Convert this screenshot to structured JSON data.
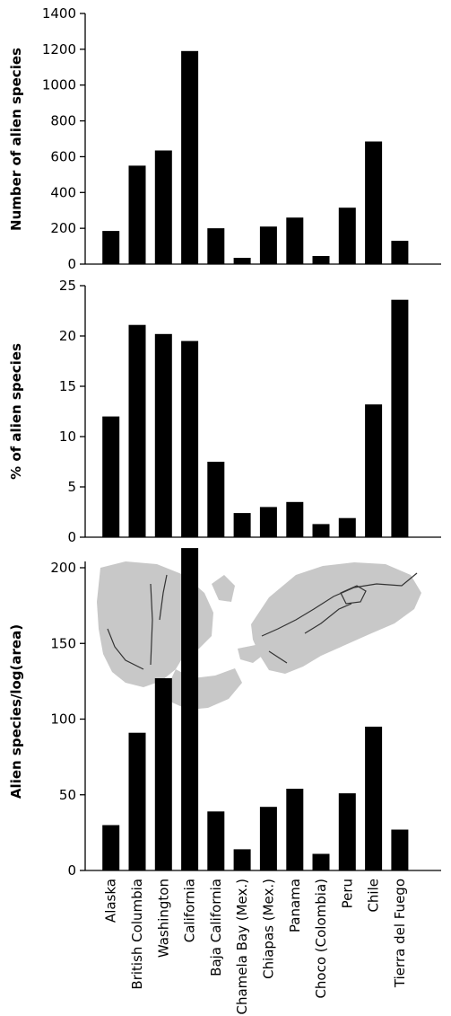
{
  "chart_data": [
    {
      "type": "bar",
      "ylabel": "Number of alien species",
      "ylim": [
        0,
        1400
      ],
      "yticks": [
        0,
        200,
        400,
        600,
        800,
        1000,
        1200,
        1400
      ],
      "categories": [
        "Alaska",
        "British Columbia",
        "Washington",
        "California",
        "Baja California",
        "Chamela Bay (Mex.)",
        "Chiapas (Mex.)",
        "Panama",
        "Choco (Colombia)",
        "Peru",
        "Chile",
        "Tierra del Fuego"
      ],
      "values": [
        185,
        550,
        635,
        1190,
        200,
        35,
        210,
        260,
        45,
        315,
        685,
        130
      ]
    },
    {
      "type": "bar",
      "ylabel": "% of alien species",
      "ylim": [
        0,
        25
      ],
      "yticks": [
        0,
        5,
        10,
        15,
        20,
        25
      ],
      "categories": [
        "Alaska",
        "British Columbia",
        "Washington",
        "California",
        "Baja California",
        "Chamela Bay (Mex.)",
        "Chiapas (Mex.)",
        "Panama",
        "Choco (Colombia)",
        "Peru",
        "Chile",
        "Tierra del Fuego"
      ],
      "values": [
        12.0,
        21.1,
        20.2,
        19.5,
        7.5,
        2.4,
        3.0,
        3.5,
        1.3,
        1.9,
        13.2,
        23.6
      ]
    },
    {
      "type": "bar",
      "ylabel": "Alien species/log(area)",
      "ylim": [
        0,
        220
      ],
      "yticks": [
        0,
        50,
        100,
        150,
        200
      ],
      "categories": [
        "Alaska",
        "British Columbia",
        "Washington",
        "California",
        "Baja California",
        "Chamela Bay (Mex.)",
        "Chiapas (Mex.)",
        "Panama",
        "Choco (Colombia)",
        "Peru",
        "Chile",
        "Tierra del Fuego"
      ],
      "values": [
        30,
        91,
        127,
        213,
        39,
        14,
        42,
        54,
        11,
        51,
        95,
        27
      ]
    }
  ],
  "map_inset": {
    "icon": "americas-map-icon",
    "land_color": "#c8c8c8",
    "route_color": "#333333"
  },
  "colors": {
    "bars": "#000000",
    "axes": "#000000"
  }
}
